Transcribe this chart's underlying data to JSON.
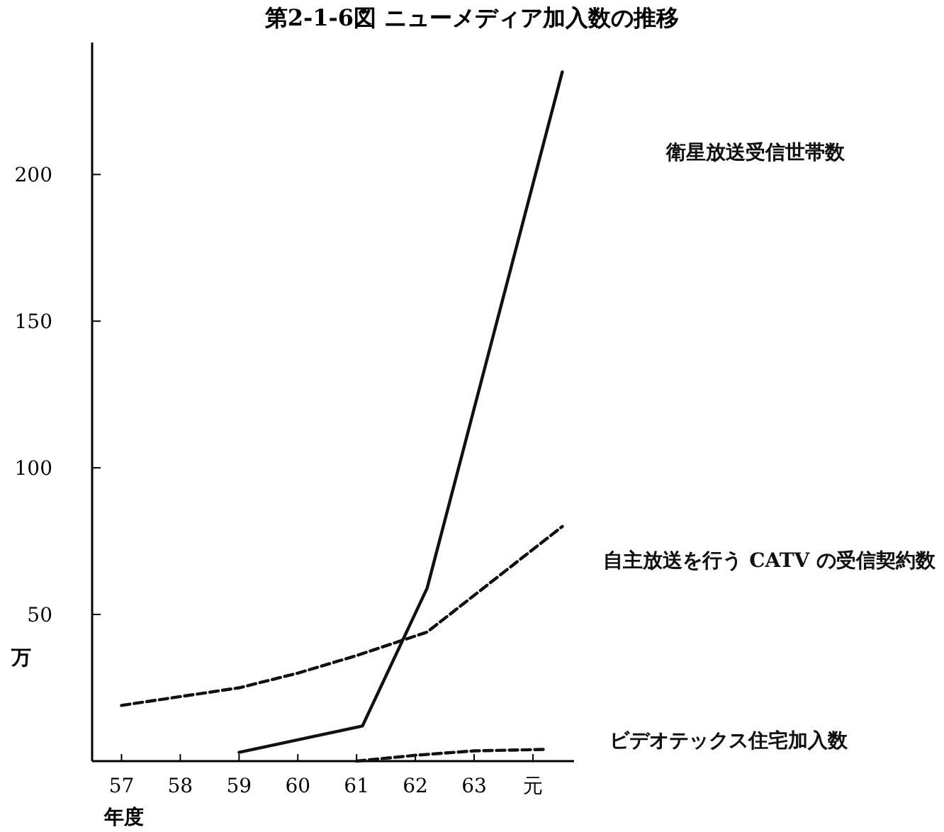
{
  "chart_data": {
    "type": "line",
    "title": "第2-1-6図 ニューメディア加入数の推移",
    "xlabel": "年度",
    "ylabel": "万",
    "xlim": [
      56.5,
      64.7
    ],
    "xticks": [
      57,
      58,
      59,
      60,
      61,
      62,
      63,
      {
        "value": 64,
        "label": "元"
      }
    ],
    "ylim": [
      0,
      245
    ],
    "yticks": [
      {
        "value": 0,
        "label": null
      },
      50,
      100,
      150,
      200
    ],
    "grid": false,
    "marker": "none",
    "series": [
      {
        "name": "衛星放送受信世帯数",
        "color": "#111111",
        "line_style": "solid",
        "x": [
          59,
          61.1,
          62.2,
          64.5
        ],
        "values": [
          3,
          12,
          59,
          235
        ]
      },
      {
        "name": "自主放送を行う CATV の受信契約数",
        "color": "#111111",
        "line_style": "dashed",
        "x": [
          57,
          58,
          59,
          60,
          61,
          62.2,
          64.5
        ],
        "values": [
          19,
          22,
          25,
          30,
          36,
          44,
          80
        ]
      },
      {
        "name": "ビデオテックス住宅加入数",
        "color": "#111111",
        "line_style": "dashed",
        "x": [
          61,
          62,
          63,
          64.2
        ],
        "values": [
          0,
          2,
          3.5,
          4
        ]
      }
    ]
  }
}
